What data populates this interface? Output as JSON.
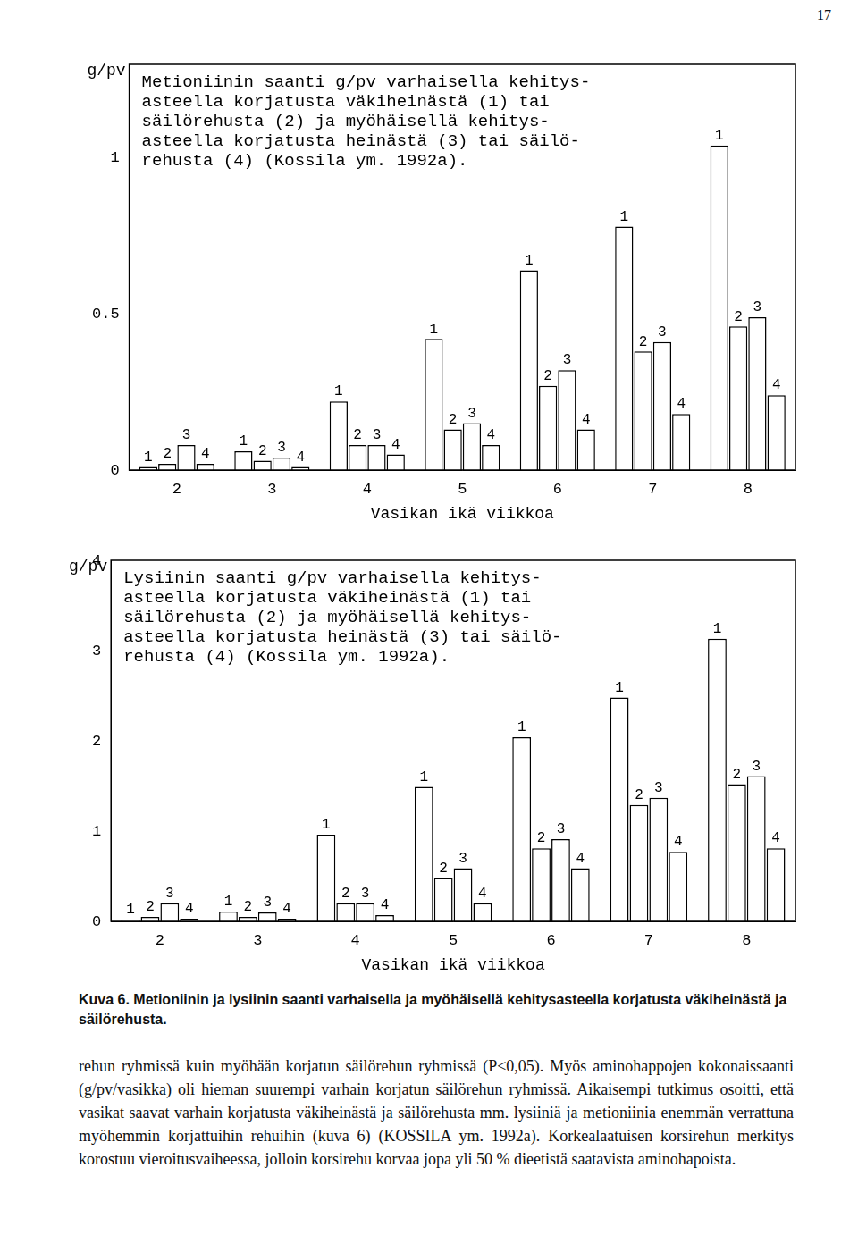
{
  "page_number": "17",
  "chart_data": [
    {
      "type": "bar",
      "title": [
        "Metioniinin saanti g/pv varhaisella kehitys-",
        "asteella korjatusta väkiheinästä (1) tai",
        "säilörehusta (2) ja myöhäisellä kehitys-",
        "asteella korjatusta heinästä (3) tai säilö-",
        "rehusta (4) (Kossila ym. 1992a)."
      ],
      "y_label": "g/pv",
      "x_label": "Vasikan ikä viikkoa",
      "categories": [
        "2",
        "3",
        "4",
        "5",
        "6",
        "7",
        "8"
      ],
      "series": [
        {
          "name": "1",
          "color": "#ffffff",
          "values": [
            0.01,
            0.06,
            0.22,
            0.42,
            0.64,
            0.78,
            1.04
          ]
        },
        {
          "name": "2",
          "color": "#ffffff",
          "values": [
            0.02,
            0.03,
            0.08,
            0.13,
            0.27,
            0.38,
            0.46
          ]
        },
        {
          "name": "3",
          "color": "#ffffff",
          "values": [
            0.08,
            0.04,
            0.08,
            0.15,
            0.32,
            0.41,
            0.49
          ]
        },
        {
          "name": "4",
          "color": "#ffffff",
          "values": [
            0.02,
            0.01,
            0.05,
            0.08,
            0.13,
            0.18,
            0.24
          ]
        }
      ],
      "ylim": [
        0,
        1.3
      ],
      "yticks": [
        0,
        0.5,
        1
      ],
      "grid": false
    },
    {
      "type": "bar",
      "title": [
        "Lysiinin saanti g/pv varhaisella kehitys-",
        "asteella korjatusta väkiheinästä (1) tai",
        "säilörehusta (2) ja myöhäisellä kehitys-",
        "asteella korjatusta heinästä (3) tai säilö-",
        "rehusta (4) (Kossila ym. 1992a)."
      ],
      "y_label": "g/pv",
      "x_label": "Vasikan ikä viikkoa",
      "categories": [
        "2",
        "3",
        "4",
        "5",
        "6",
        "7",
        "8"
      ],
      "series": [
        {
          "name": "1",
          "color": "#ffffff",
          "values": [
            0.02,
            0.11,
            0.96,
            1.49,
            2.04,
            2.48,
            3.13
          ]
        },
        {
          "name": "2",
          "color": "#ffffff",
          "values": [
            0.05,
            0.05,
            0.2,
            0.48,
            0.81,
            1.29,
            1.52
          ]
        },
        {
          "name": "3",
          "color": "#ffffff",
          "values": [
            0.2,
            0.1,
            0.2,
            0.59,
            0.91,
            1.37,
            1.61
          ]
        },
        {
          "name": "4",
          "color": "#ffffff",
          "values": [
            0.03,
            0.03,
            0.07,
            0.2,
            0.59,
            0.77,
            0.81
          ]
        }
      ],
      "ylim": [
        0,
        4
      ],
      "yticks": [
        0,
        1,
        2,
        3,
        4
      ],
      "grid": false
    }
  ],
  "caption": "Kuva 6. Metioniinin ja lysiinin saanti varhaisella ja myöhäisellä kehitysasteella korjatusta väkiheinästä ja säilörehusta.",
  "body": "rehun ryhmissä kuin myöhään korjatun säilörehun ryhmissä (P<0,05). Myös aminohappojen kokonaissaanti (g/pv/vasikka) oli hieman suurempi varhain korjatun säilörehun ryhmissä. Aikaisempi tutkimus osoitti, että vasikat saavat varhain korjatusta väkiheinästä ja säilörehusta mm. lysiiniä ja metioniinia enemmän verrattuna myöhemmin korjattuihin rehuihin (kuva 6) (KOSSILA ym. 1992a). Korkealaatuisen korsirehun merkitys korostuu vieroitusvaiheessa, jolloin korsirehu korvaa jopa yli 50 % dieetistä saatavista aminohapoista."
}
